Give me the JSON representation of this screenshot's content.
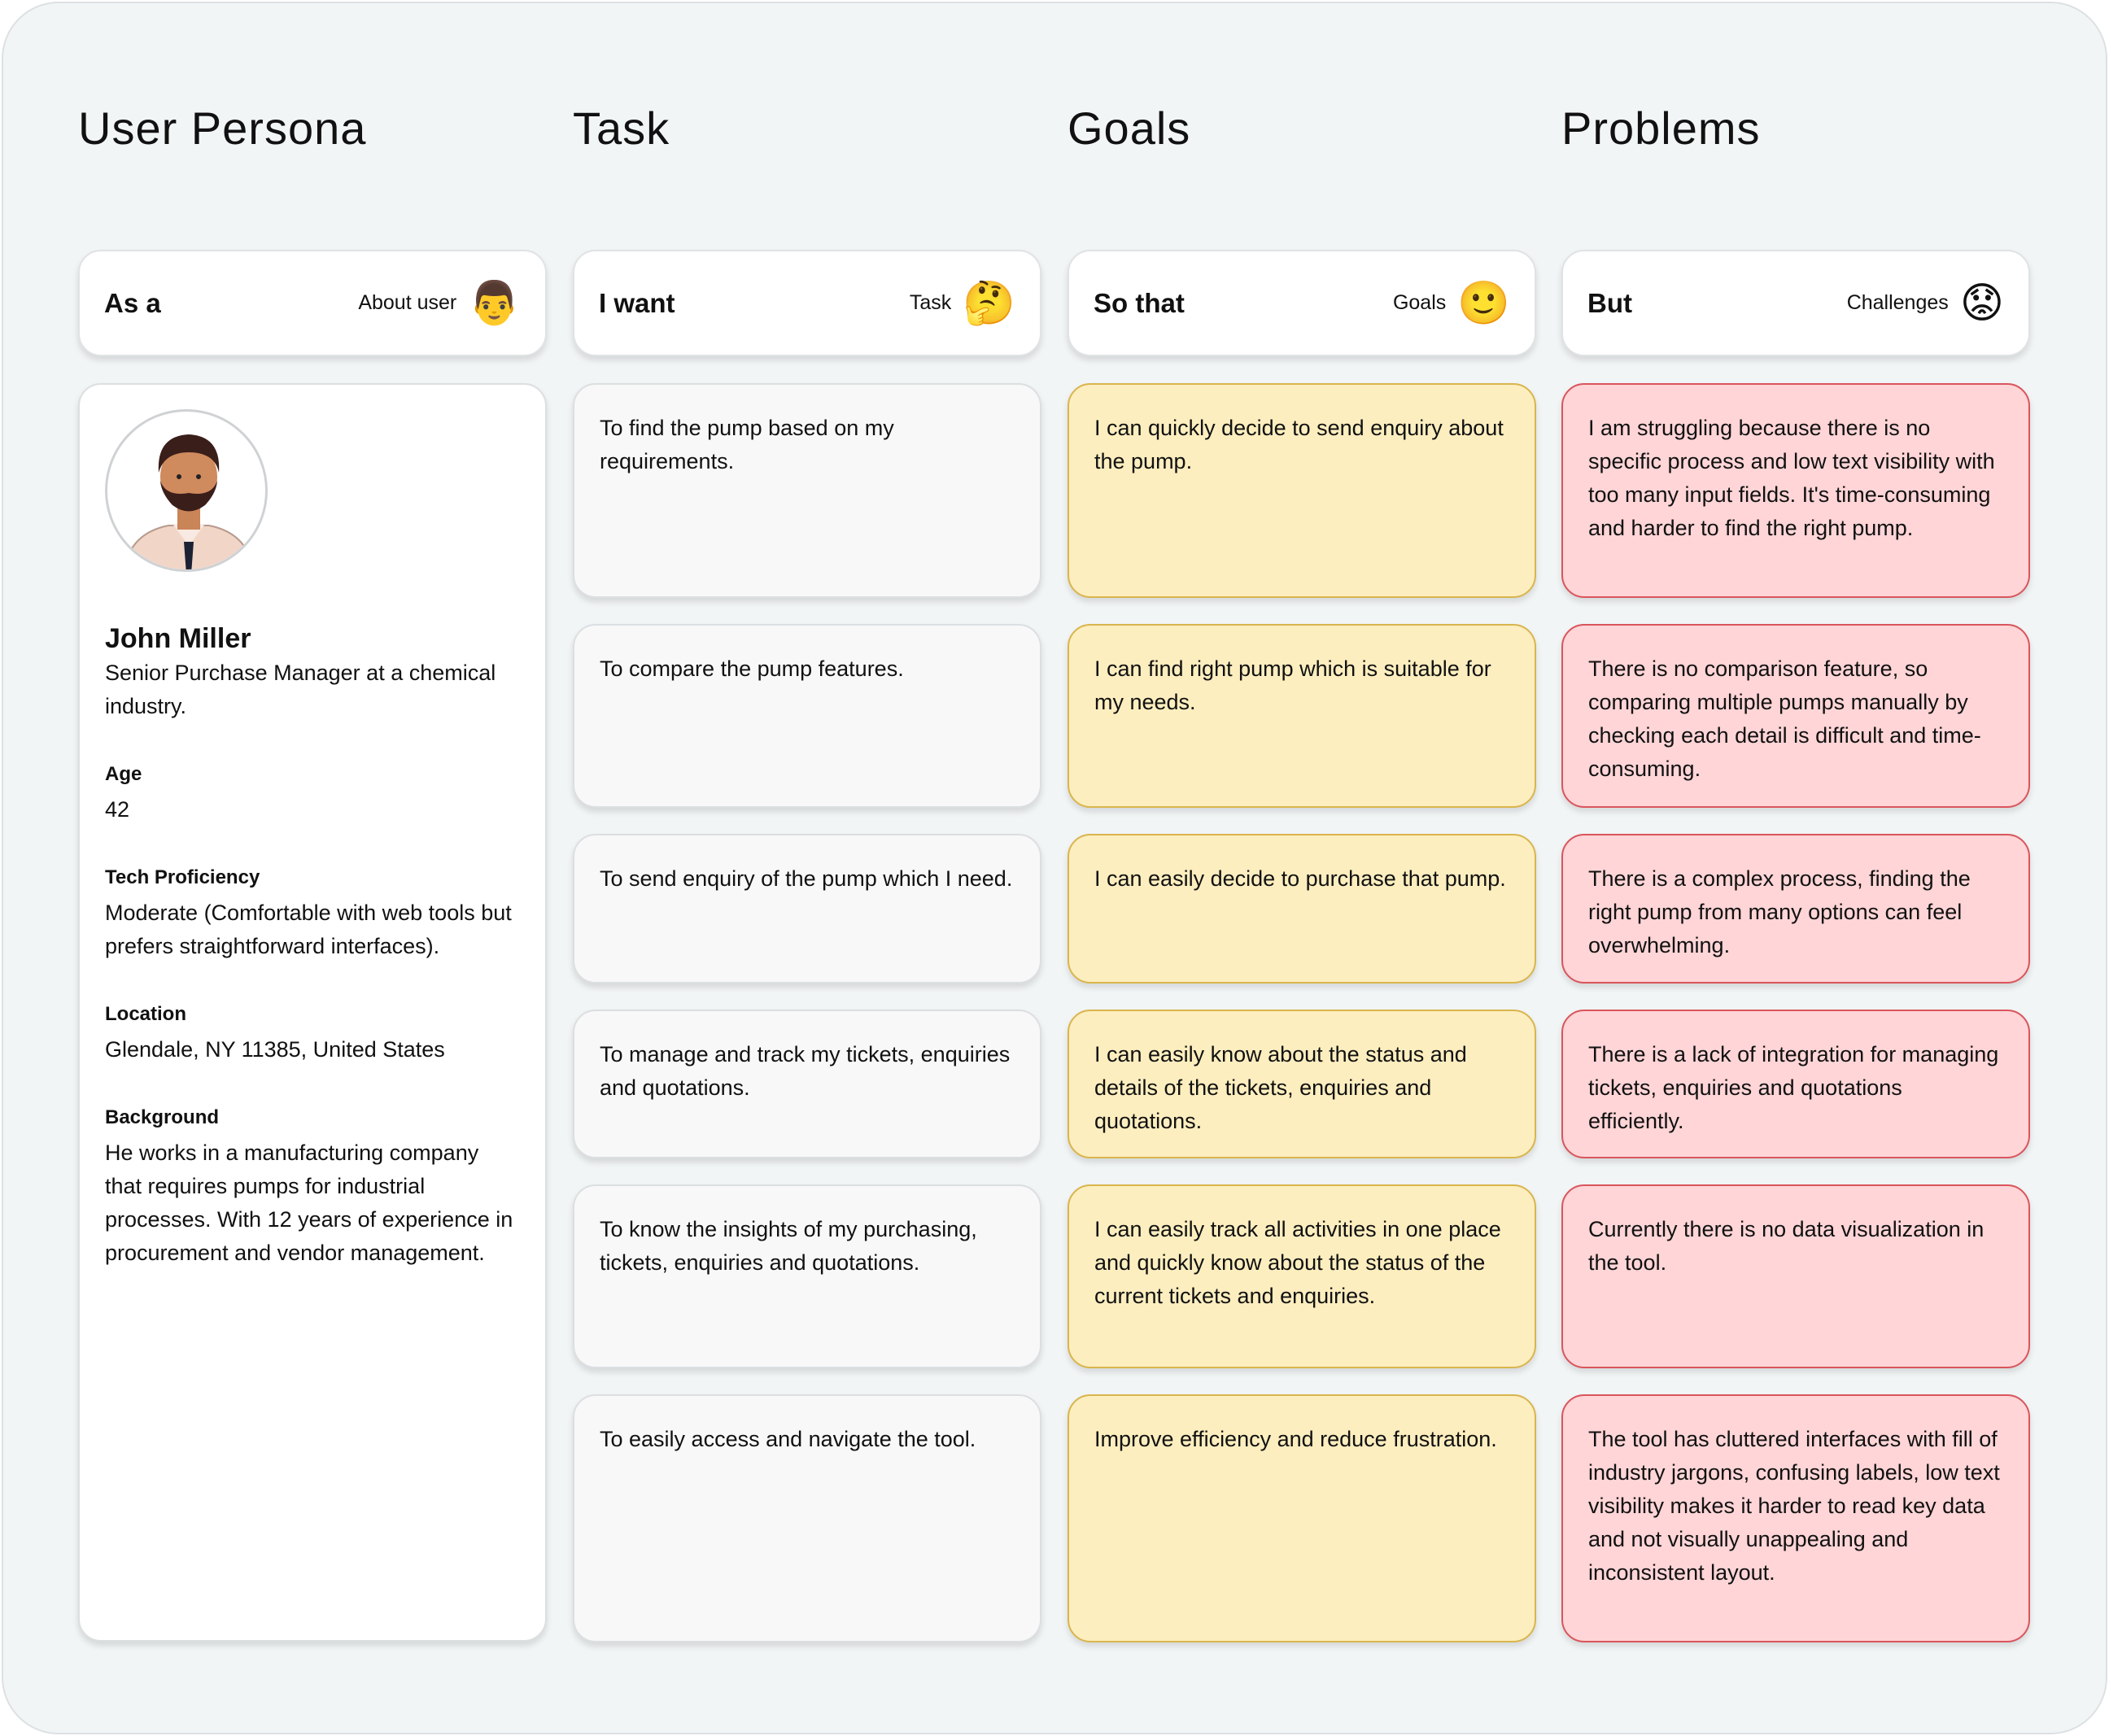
{
  "columns": [
    {
      "title": "User Persona",
      "header": "As a",
      "sub": "About user",
      "emoji": "👨",
      "emoji_name": "man-emoji-icon"
    },
    {
      "title": "Task",
      "header": "I want",
      "sub": "Task",
      "emoji": "🤔",
      "emoji_name": "thinking-face-icon"
    },
    {
      "title": "Goals",
      "header": "So that",
      "sub": "Goals",
      "emoji": "🙂",
      "emoji_name": "smiling-face-icon"
    },
    {
      "title": "Problems",
      "header": "But",
      "sub": "Challenges",
      "emoji": "😟",
      "emoji_name": "worried-face-icon"
    }
  ],
  "persona": {
    "name": "John Miller",
    "role": "Senior Purchase Manager at a chemical industry.",
    "fields": [
      {
        "label": "Age",
        "value": "42"
      },
      {
        "label": "Tech Proficiency",
        "value": "Moderate (Comfortable with web tools but prefers straightforward interfaces)."
      },
      {
        "label": "Location",
        "value": "Glendale, NY 11385, United States"
      },
      {
        "label": "Background",
        "value": "He works in a manufacturing company that requires pumps for industrial processes. With 12 years of experience in procurement and vendor management."
      }
    ]
  },
  "rows": [
    {
      "task": "To find the pump based on my requirements.",
      "goal": "I can quickly decide to send enquiry about the pump.",
      "problem": "I am struggling because there is no specific process and low text visibility with too many input fields. It's time-consuming and harder to find the right pump."
    },
    {
      "task": "To compare the pump features.",
      "goal": "I can find right pump which is suitable for my needs.",
      "problem": "There is no comparison feature, so comparing multiple pumps manually by checking each detail is difficult and time-consuming."
    },
    {
      "task": "To send enquiry of the pump which I need.",
      "goal": "I can easily decide to purchase that pump.",
      "problem": "There is a complex process, finding the right pump from many options can feel overwhelming."
    },
    {
      "task": "To manage and track my tickets, enquiries and quotations.",
      "goal": "I can easily know about the status and details of the tickets, enquiries and quotations.",
      "problem": "There is a lack of integration for managing tickets, enquiries and quotations efficiently."
    },
    {
      "task": "To know the insights of my purchasing, tickets, enquiries and quotations.",
      "goal": "I can easily track all activities in one place and quickly know about the status of the current tickets and enquiries.",
      "problem": "Currently there is no data visualization in the tool."
    },
    {
      "task": "To easily access and navigate the tool.",
      "goal": "Improve efficiency and reduce frustration.",
      "problem": "The tool has cluttered interfaces with fill of industry jargons, confusing labels, low text visibility makes it harder to read key data and not visually unappealing and inconsistent layout."
    }
  ]
}
